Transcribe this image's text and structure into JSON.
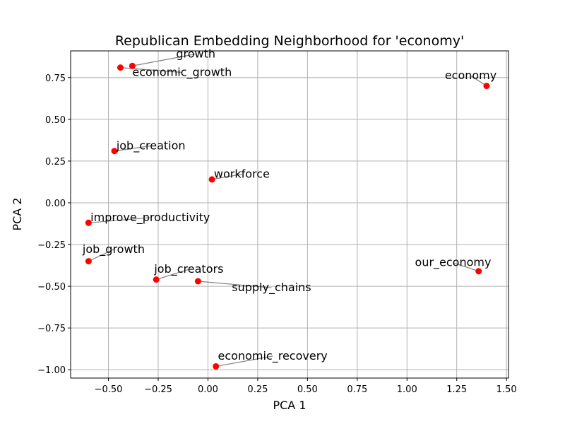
{
  "chart_data": {
    "type": "scatter",
    "title": "Republican Embedding Neighborhood for 'economy'",
    "xlabel": "PCA 1",
    "ylabel": "PCA 2",
    "xlim": [
      -0.69,
      1.51
    ],
    "ylim": [
      -1.05,
      0.91
    ],
    "xticks": [
      "−0.50",
      "−0.25",
      "0.00",
      "0.25",
      "0.50",
      "0.75",
      "1.00",
      "1.25",
      "1.50"
    ],
    "xtick_values": [
      -0.5,
      -0.25,
      0.0,
      0.25,
      0.5,
      0.75,
      1.0,
      1.25,
      1.5
    ],
    "yticks": [
      "−1.00",
      "−0.75",
      "−0.50",
      "−0.25",
      "0.00",
      "0.25",
      "0.50",
      "0.75"
    ],
    "ytick_values": [
      -1.0,
      -0.75,
      -0.5,
      -0.25,
      0.0,
      0.25,
      0.5,
      0.75
    ],
    "grid": true,
    "marker_color": "#ff0000",
    "leader_color": "#808080",
    "points": [
      {
        "label": "growth",
        "x": -0.38,
        "y": 0.82,
        "lx": -0.16,
        "ly": 0.87
      },
      {
        "label": "economic_growth",
        "x": -0.44,
        "y": 0.81,
        "lx": -0.38,
        "ly": 0.76
      },
      {
        "label": "economy",
        "x": 1.4,
        "y": 0.7,
        "lx": 1.19,
        "ly": 0.74
      },
      {
        "label": "job_creation",
        "x": -0.47,
        "y": 0.31,
        "lx": -0.46,
        "ly": 0.32
      },
      {
        "label": "workforce",
        "x": 0.02,
        "y": 0.14,
        "lx": 0.03,
        "ly": 0.15
      },
      {
        "label": "improve_productivity",
        "x": -0.6,
        "y": -0.12,
        "lx": -0.59,
        "ly": -0.11
      },
      {
        "label": "job_growth",
        "x": -0.6,
        "y": -0.35,
        "lx": -0.63,
        "ly": -0.3
      },
      {
        "label": "job_creators",
        "x": -0.26,
        "y": -0.46,
        "lx": -0.27,
        "ly": -0.42
      },
      {
        "label": "supply_chains",
        "x": -0.05,
        "y": -0.47,
        "lx": 0.12,
        "ly": -0.53
      },
      {
        "label": "our_economy",
        "x": 1.36,
        "y": -0.41,
        "lx": 1.04,
        "ly": -0.38
      },
      {
        "label": "economic_recovery",
        "x": 0.04,
        "y": -0.98,
        "lx": 0.05,
        "ly": -0.94
      }
    ]
  }
}
